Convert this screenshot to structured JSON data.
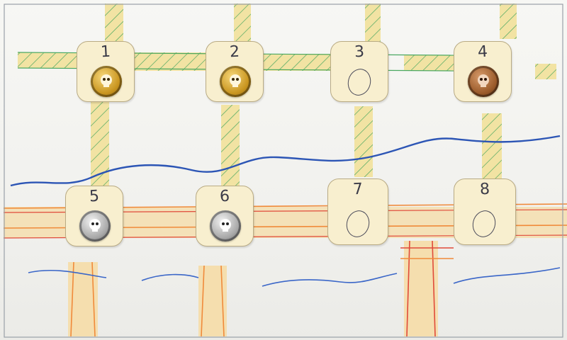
{
  "tiles": [
    {
      "number": "1",
      "content": "gold-coin"
    },
    {
      "number": "2",
      "content": "gold-coin"
    },
    {
      "number": "3",
      "content": "empty"
    },
    {
      "number": "4",
      "content": "bronze-coin"
    },
    {
      "number": "5",
      "content": "silver-coin"
    },
    {
      "number": "6",
      "content": "silver-coin"
    },
    {
      "number": "7",
      "content": "empty"
    },
    {
      "number": "8",
      "content": "empty"
    }
  ],
  "colors": {
    "gold": "#c9951f",
    "bronze": "#9a5a2a",
    "silver": "#a8a8a8",
    "tile": "#f8efcf",
    "green_line": "#4aa861",
    "orange_line": "#f08a3a",
    "red_line": "#e04a3a",
    "blue_wave": "#2c55b5",
    "path_fill": "#f3e3a4"
  }
}
